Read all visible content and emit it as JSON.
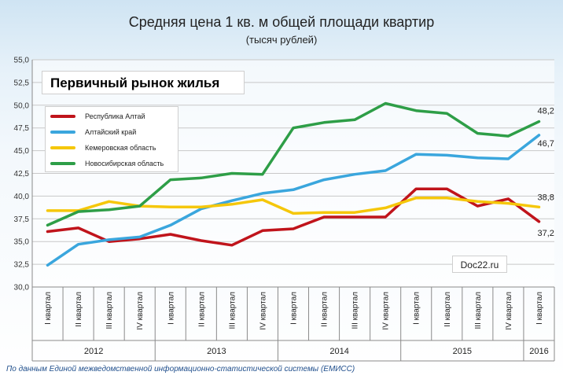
{
  "header": {
    "title": "Средняя цена 1 кв. м общей площади квартир",
    "subtitle": "(тысяч рублей)",
    "panel_label": "Первичный рынок жилья"
  },
  "chart_data": {
    "type": "line",
    "title": "Средняя цена 1 кв. м общей площади квартир",
    "subtitle": "(тысяч рублей)",
    "annotation": "Первичный рынок жилья",
    "categories": [
      "I квартал",
      "II квартал",
      "III квартал",
      "IV квартал",
      "I квартал",
      "II квартал",
      "III квартал",
      "IV квартал",
      "I квартал",
      "II квартал",
      "III квартал",
      "IV квартал",
      "I квартал",
      "II квартал",
      "III квартал",
      "IV квартал",
      "I квартал"
    ],
    "years": [
      {
        "label": "2012",
        "span": 4
      },
      {
        "label": "2013",
        "span": 4
      },
      {
        "label": "2014",
        "span": 4
      },
      {
        "label": "2015",
        "span": 4
      },
      {
        "label": "2016",
        "span": 1
      }
    ],
    "ylim": [
      30.0,
      55.0
    ],
    "yticks": [
      "30,0",
      "32,5",
      "35,0",
      "37,5",
      "40,0",
      "42,5",
      "45,0",
      "47,5",
      "50,0",
      "52,5",
      "55,0"
    ],
    "grid": true,
    "legend_position": "top-left",
    "series": [
      {
        "name": "Республика Алтай",
        "color": "#c0141b",
        "values": [
          36.1,
          36.5,
          35.0,
          35.3,
          35.8,
          35.1,
          34.6,
          36.2,
          36.4,
          37.7,
          37.7,
          37.7,
          40.8,
          40.8,
          38.9,
          39.7,
          37.2
        ],
        "end_label": "37,2"
      },
      {
        "name": "Алтайский край",
        "color": "#3aa6dd",
        "values": [
          32.4,
          34.7,
          35.2,
          35.5,
          36.8,
          38.6,
          39.5,
          40.3,
          40.7,
          41.8,
          42.4,
          42.8,
          44.6,
          44.5,
          44.2,
          44.1,
          46.7
        ],
        "end_label": "46,7"
      },
      {
        "name": "Кемеровская область",
        "color": "#f5c70a",
        "values": [
          38.4,
          38.4,
          39.4,
          38.9,
          38.8,
          38.8,
          39.1,
          39.6,
          38.1,
          38.2,
          38.2,
          38.7,
          39.8,
          39.8,
          39.4,
          39.2,
          38.8
        ],
        "end_label": "38,8"
      },
      {
        "name": "Новосибирская область",
        "color": "#2e9e47",
        "values": [
          36.8,
          38.3,
          38.5,
          38.9,
          41.8,
          42.0,
          42.5,
          42.4,
          47.5,
          48.1,
          48.4,
          50.2,
          49.4,
          49.1,
          46.9,
          46.6,
          48.2
        ],
        "end_label": "48,2"
      }
    ]
  },
  "watermark": "Doc22.ru",
  "source": "По данным Единой межведомственной информационно-статистической системы (ЕМИСС)"
}
